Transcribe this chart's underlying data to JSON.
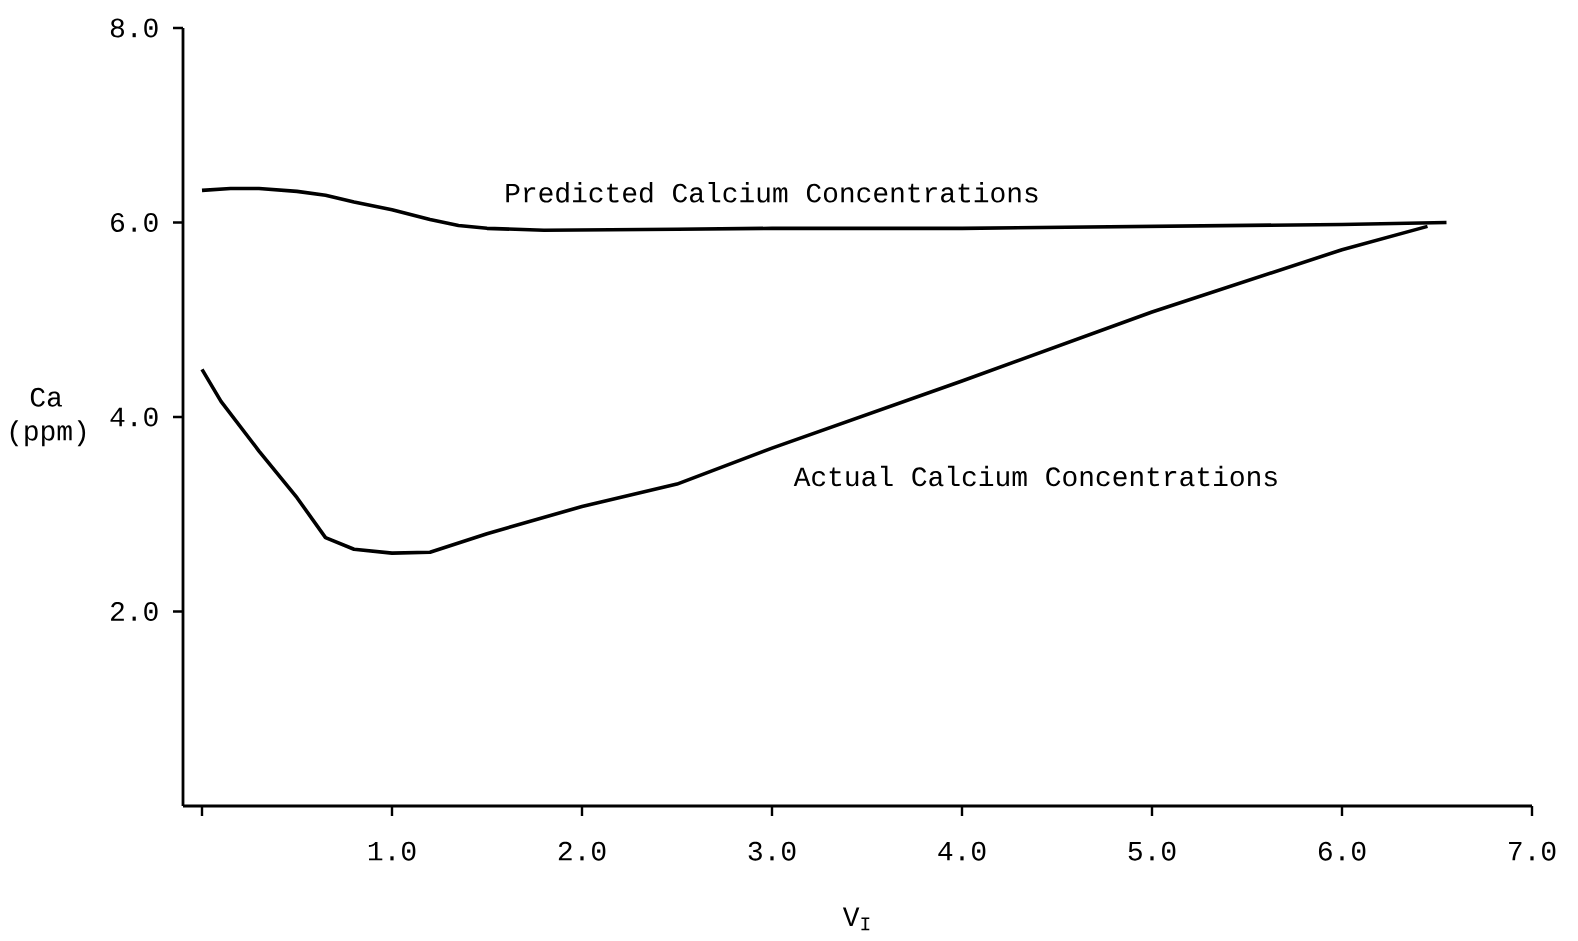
{
  "chart_data": {
    "type": "line",
    "xlabel": "V$_{I}$",
    "ylabel": "Ca (ppm)",
    "xlim": [
      -0.1,
      7.0
    ],
    "ylim": [
      0,
      8
    ],
    "xticks": [
      {
        "value": 0,
        "label": null
      },
      {
        "value": 1,
        "label": "1.0"
      },
      {
        "value": 2,
        "label": "2.0"
      },
      {
        "value": 3,
        "label": "3.0"
      },
      {
        "value": 4,
        "label": "4.0"
      },
      {
        "value": 5,
        "label": "5.0"
      },
      {
        "value": 6,
        "label": "6.0"
      },
      {
        "value": 7,
        "label": "7.0"
      }
    ],
    "yticks": [
      {
        "value": 2,
        "label": "2.0"
      },
      {
        "value": 4,
        "label": "4.0"
      },
      {
        "value": 6,
        "label": "6.0"
      },
      {
        "value": 8,
        "label": "8.0"
      }
    ],
    "grid": false,
    "marker": "none",
    "line_style": "solid",
    "series": [
      {
        "name": "Predicted Calcium Concentrations",
        "color": "#000000",
        "x": [
          0,
          0.15,
          0.3,
          0.5,
          0.65,
          0.8,
          1.0,
          1.2,
          1.35,
          1.5,
          1.8,
          2.5,
          3.0,
          4.0,
          5.0,
          6.0,
          6.55
        ],
        "values": [
          6.33,
          6.35,
          6.35,
          6.32,
          6.28,
          6.21,
          6.13,
          6.03,
          5.97,
          5.94,
          5.92,
          5.93,
          5.94,
          5.94,
          5.96,
          5.98,
          6.0
        ]
      },
      {
        "name": "Actual Calcium Concentrations",
        "color": "#000000",
        "x": [
          0,
          0.1,
          0.3,
          0.5,
          0.65,
          0.8,
          1.0,
          1.2,
          1.5,
          2.0,
          2.5,
          3.0,
          4.0,
          5.0,
          6.0,
          6.45
        ],
        "values": [
          4.49,
          4.16,
          3.65,
          3.17,
          2.76,
          2.64,
          2.6,
          2.61,
          2.8,
          3.08,
          3.31,
          3.68,
          4.37,
          5.08,
          5.72,
          5.96
        ]
      }
    ]
  }
}
